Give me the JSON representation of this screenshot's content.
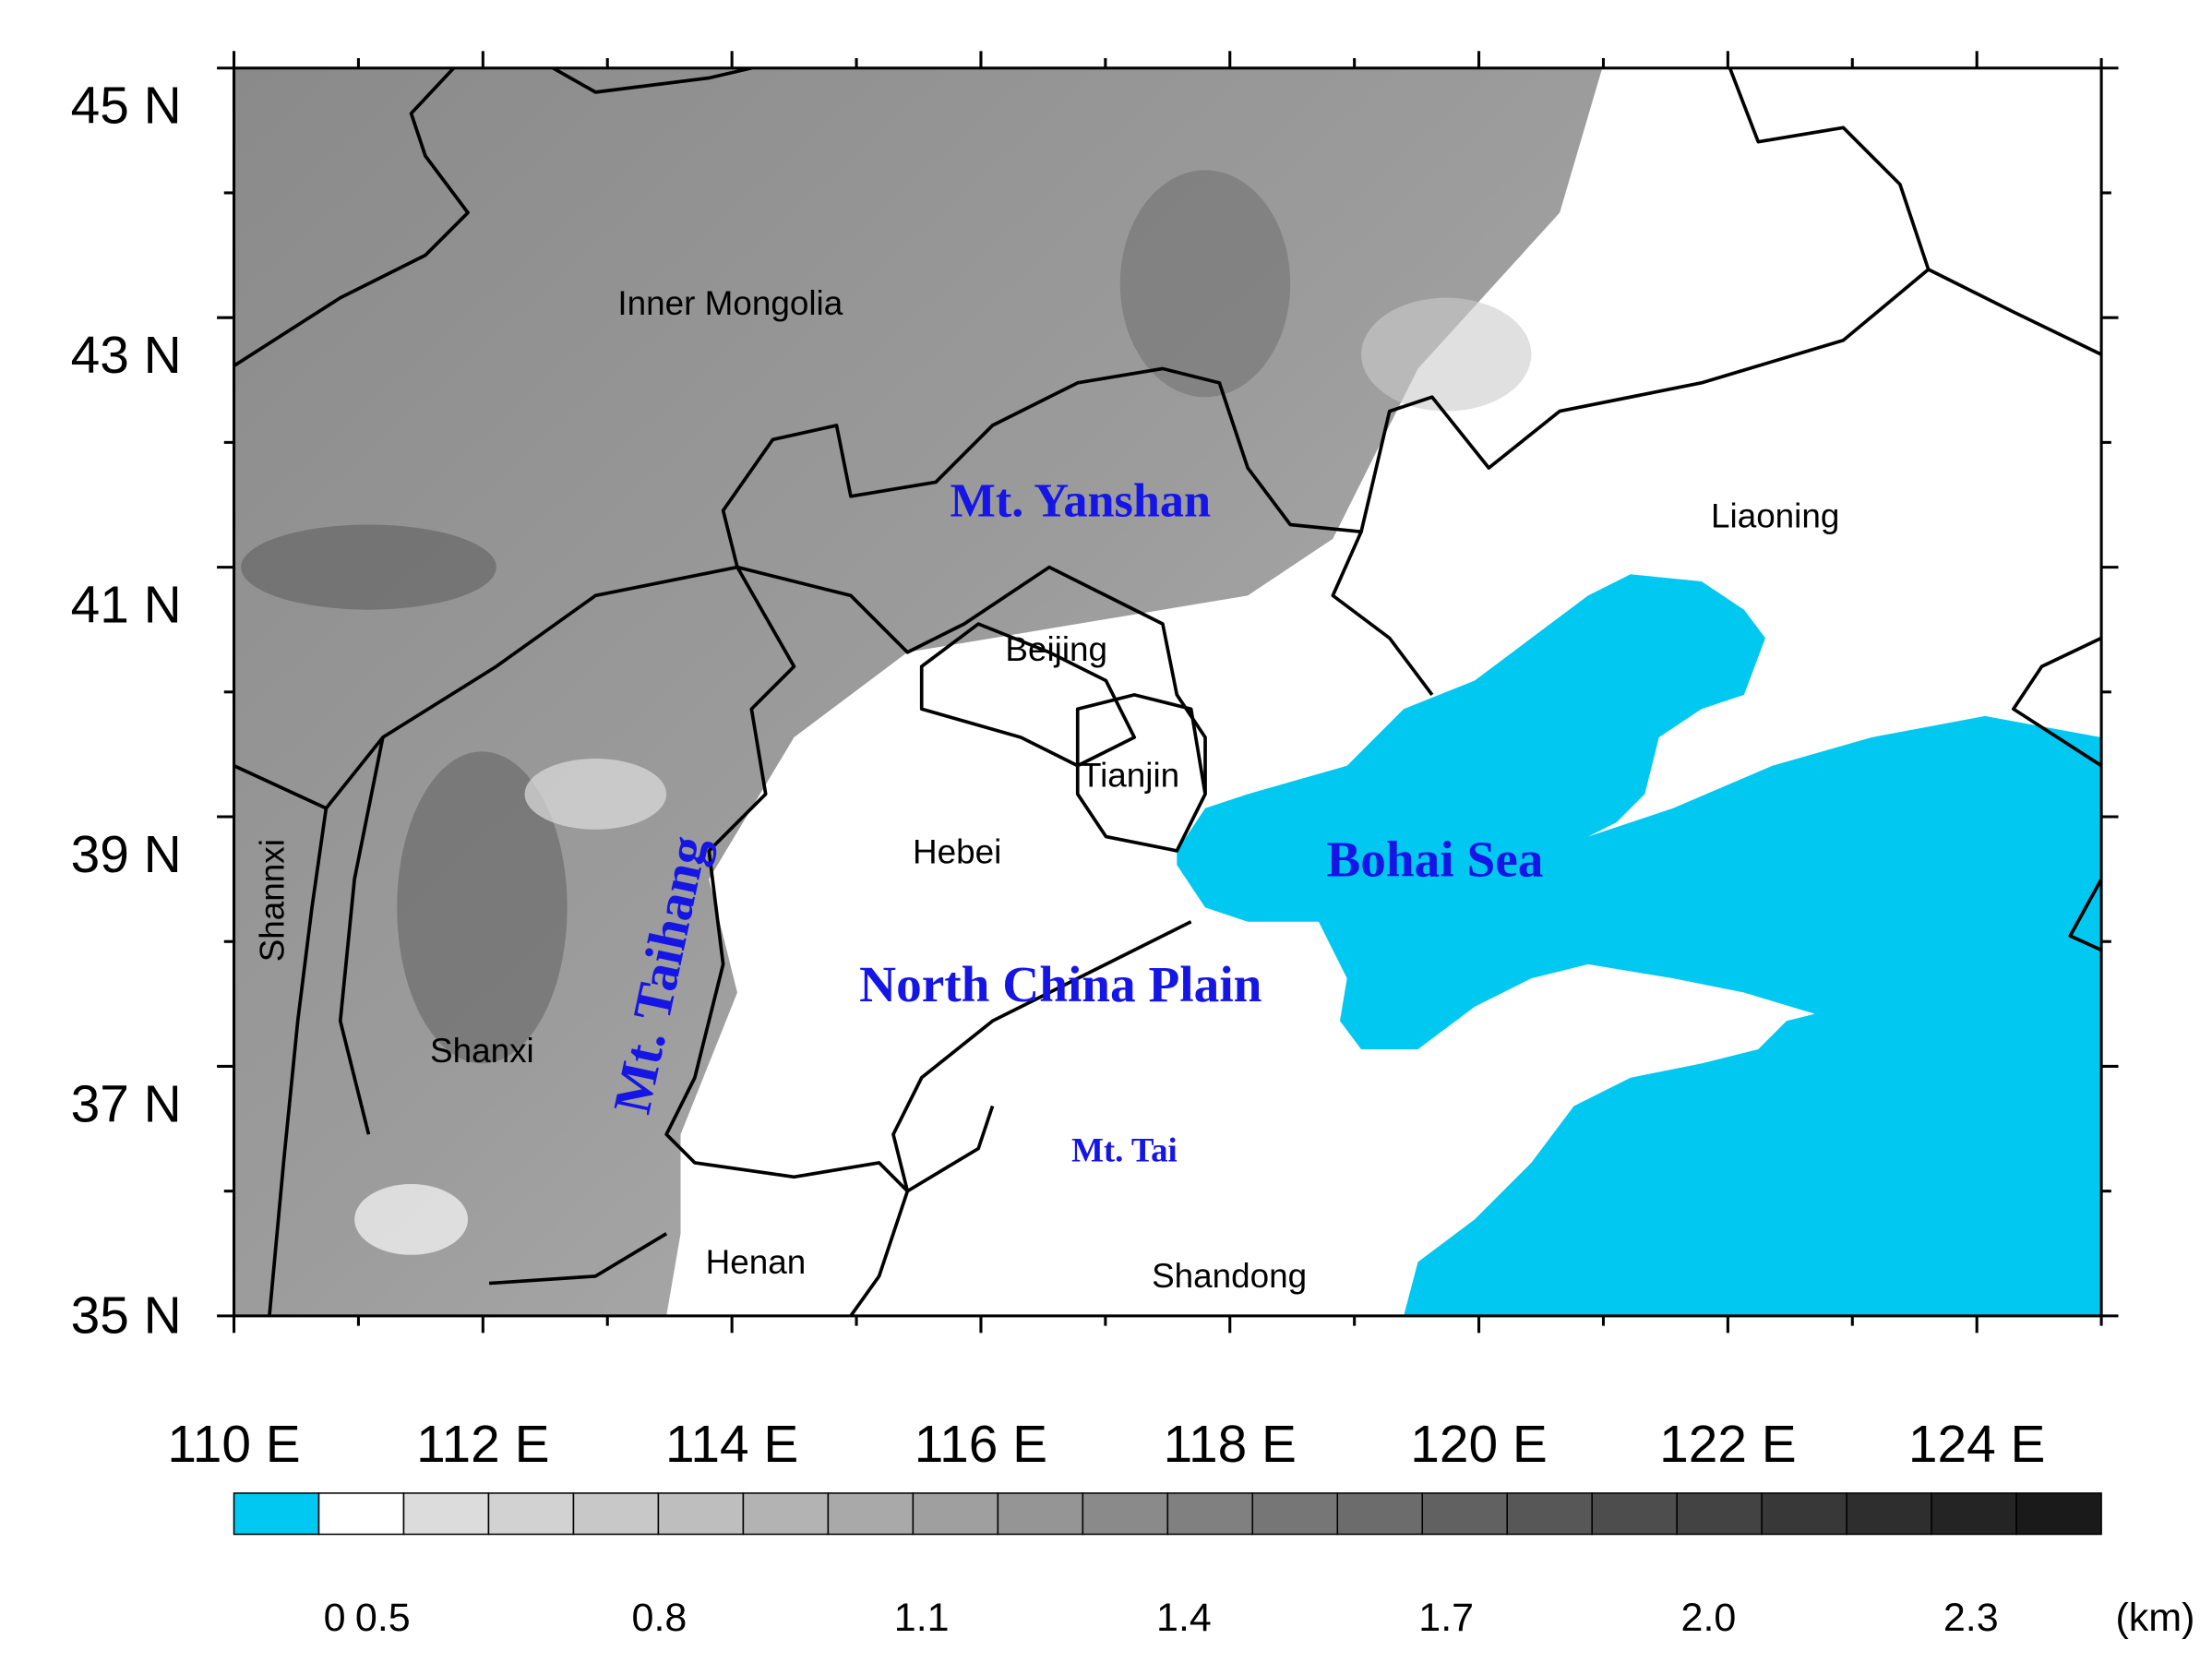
{
  "map": {
    "lat_labels": [
      "45 N",
      "43 N",
      "41 N",
      "39 N",
      "37 N",
      "35 N"
    ],
    "lon_labels": [
      "110 E",
      "112 E",
      "114 E",
      "116 E",
      "118 E",
      "120 E",
      "122 E",
      "124 E"
    ],
    "place_labels": [
      "Inner Mongolia",
      "Liaoning",
      "Beijing",
      "Tianjin",
      "Hebei",
      "Shannxi",
      "Shanxi",
      "Henan",
      "Shandong"
    ],
    "feature_labels": [
      "Mt. Yanshan",
      "Bohai Sea",
      "North China Plain",
      "Mt. Taihang",
      "Mt. Tai"
    ]
  },
  "colorbar": {
    "labels": [
      "0",
      "0.5",
      "0.8",
      "1.1",
      "1.4",
      "1.7",
      "2.0",
      "2.3"
    ],
    "unit": "(km)",
    "colors": [
      "#00c8f0",
      "#ffffff",
      "#dcdcdc",
      "#d2d2d2",
      "#c8c8c8",
      "#bebebe",
      "#b3b3b3",
      "#a9a9a9",
      "#9f9f9f",
      "#959595",
      "#8a8a8a",
      "#808080",
      "#767676",
      "#6c6c6c",
      "#616161",
      "#575757",
      "#4d4d4d",
      "#434343",
      "#383838",
      "#2e2e2e",
      "#242424",
      "#1a1a1a"
    ]
  }
}
